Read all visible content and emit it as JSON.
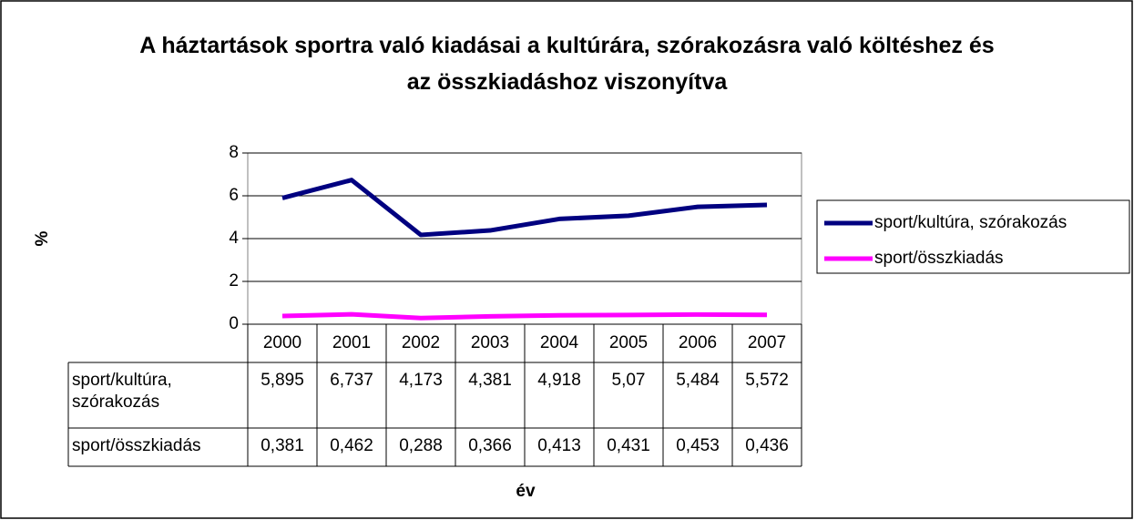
{
  "chart_data": {
    "type": "line",
    "title": "A háztartások sportra való kiadásai a kultúrára, szórakozásra való költéshez és az összkiadáshoz viszonyítva",
    "xlabel": "év",
    "ylabel": "%",
    "categories": [
      "2000",
      "2001",
      "2002",
      "2003",
      "2004",
      "2005",
      "2006",
      "2007"
    ],
    "series": [
      {
        "name": "sport/kultúra, szórakozás",
        "color": "#000080",
        "values": [
          5.895,
          6.737,
          4.173,
          4.381,
          4.918,
          5.07,
          5.484,
          5.572
        ],
        "value_labels": [
          "5,895",
          "6,737",
          "4,173",
          "4,381",
          "4,918",
          "5,07",
          "5,484",
          "5,572"
        ]
      },
      {
        "name": "sport/összkiadás",
        "color": "#ff00ff",
        "values": [
          0.381,
          0.462,
          0.288,
          0.366,
          0.413,
          0.431,
          0.453,
          0.436
        ],
        "value_labels": [
          "0,381",
          "0,462",
          "0,288",
          "0,366",
          "0,413",
          "0,431",
          "0,453",
          "0,436"
        ]
      }
    ],
    "ylim": [
      0,
      8
    ],
    "yticks": [
      0,
      2,
      4,
      6,
      8
    ],
    "grid": true,
    "legend": "right"
  }
}
